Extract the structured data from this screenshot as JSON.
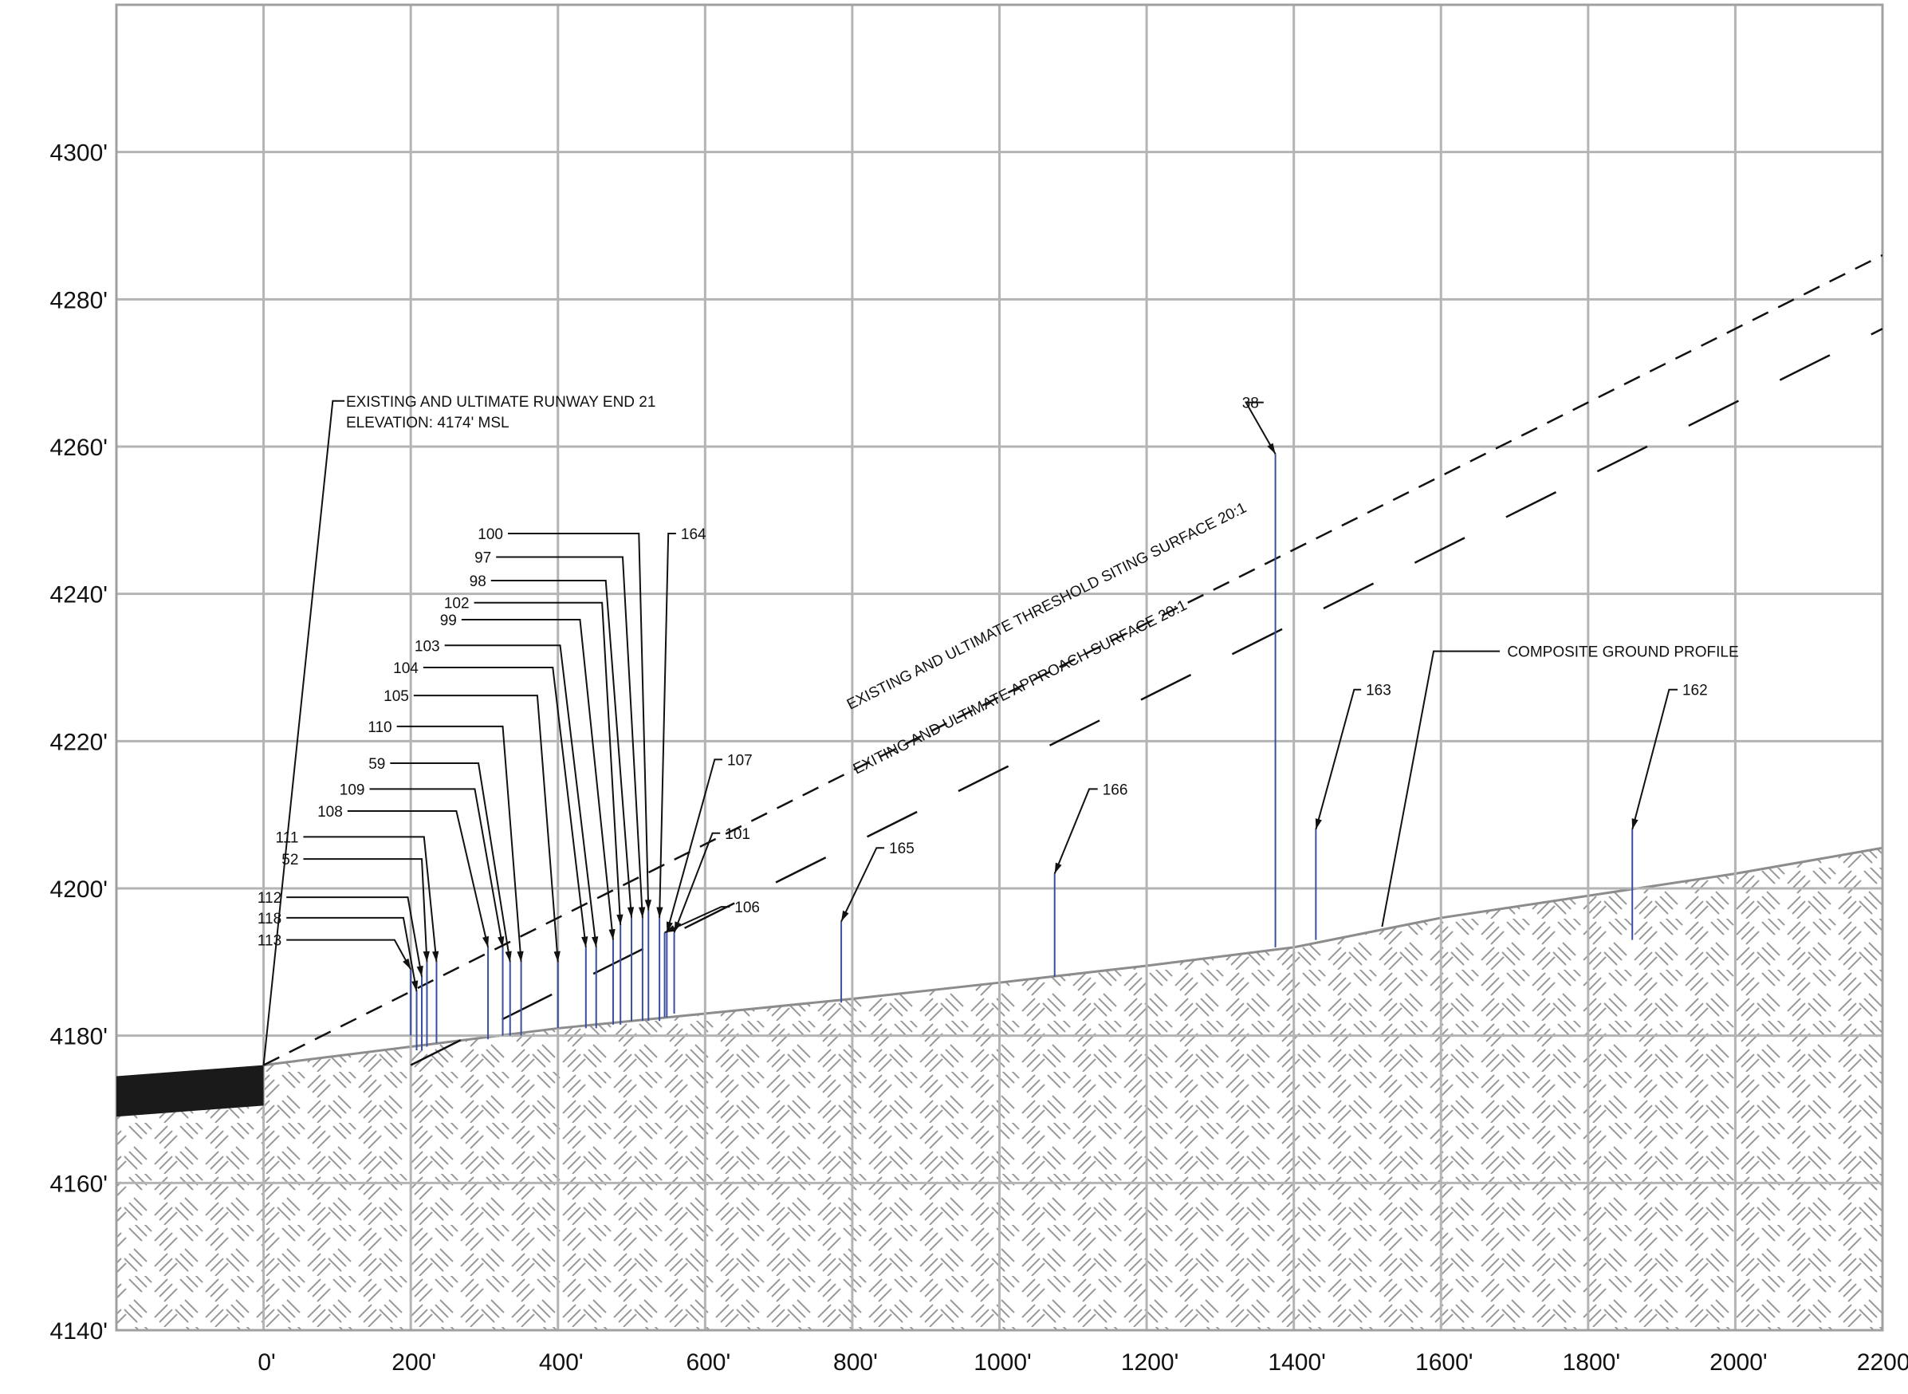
{
  "chart_data": {
    "type": "line",
    "x_unit": "ft",
    "y_unit": "ft MSL",
    "xlim": [
      -200,
      2200
    ],
    "ylim": [
      4140,
      4320
    ],
    "x_ticks": [
      0,
      200,
      400,
      600,
      800,
      1000,
      1200,
      1400,
      1600,
      1800,
      2000,
      2200
    ],
    "x_tick_labels": [
      "0'",
      "200'",
      "400'",
      "600'",
      "800'",
      "1000'",
      "1200'",
      "1400'",
      "1600'",
      "1800'",
      "2000'",
      "2200'"
    ],
    "y_ticks": [
      4140,
      4160,
      4180,
      4200,
      4220,
      4240,
      4260,
      4280,
      4300
    ],
    "y_tick_labels": [
      "4140'",
      "4160'",
      "4180'",
      "4200'",
      "4220'",
      "4240'",
      "4260'",
      "4280'",
      "4300'"
    ],
    "grid": true,
    "runway": {
      "label_line1": "EXISTING AND ULTIMATE RUNWAY END 21",
      "label_line2": "ELEVATION: 4174' MSL",
      "top": [
        [
          -200,
          4174.5
        ],
        [
          0,
          4176
        ]
      ],
      "bottom": [
        [
          -200,
          4169
        ],
        [
          0,
          4170.5
        ]
      ]
    },
    "series": [
      {
        "name": "COMPOSITE GROUND PROFILE",
        "style": "solid-gray-hatched-fill",
        "x": [
          0,
          200,
          400,
          600,
          800,
          1000,
          1200,
          1400,
          1600,
          1800,
          2000,
          2200
        ],
        "y": [
          4176,
          4178.5,
          4181,
          4183,
          4185,
          4187.2,
          4189.5,
          4192,
          4196,
          4199,
          4202,
          4205.5
        ]
      },
      {
        "name": "EXISTING AND ULTIMATE THRESHOLD SITING SURFACE 20:1",
        "style": "short-dash",
        "x": [
          0,
          2200
        ],
        "y": [
          4176,
          4286
        ]
      },
      {
        "name": "EXITING AND ULTIMATE APPROACH SURFACE 20:1",
        "style": "long-dash",
        "x": [
          200,
          2200
        ],
        "y": [
          4176,
          4276
        ]
      }
    ],
    "obstructions": [
      {
        "id": "113",
        "x": 200,
        "top": 4189,
        "base": 4180,
        "label_x": -8,
        "label_y": 4193,
        "elbow_x": 178
      },
      {
        "id": "118",
        "x": 208,
        "top": 4186,
        "base": 4178,
        "label_x": -8,
        "label_y": 4196,
        "elbow_x": 190
      },
      {
        "id": "112",
        "x": 215,
        "top": 4188,
        "base": 4178,
        "label_x": -8,
        "label_y": 4198.8,
        "elbow_x": 196
      },
      {
        "id": "52",
        "x": 222,
        "top": 4190,
        "base": 4178.5,
        "label_x": 15,
        "label_y": 4204,
        "elbow_x": 215
      },
      {
        "id": "111",
        "x": 235,
        "top": 4190,
        "base": 4179,
        "label_x": 15,
        "label_y": 4207,
        "elbow_x": 218
      },
      {
        "id": "108",
        "x": 305,
        "top": 4192,
        "base": 4179.5,
        "label_x": 75,
        "label_y": 4210.5,
        "elbow_x": 262
      },
      {
        "id": "109",
        "x": 325,
        "top": 4192,
        "base": 4180,
        "label_x": 105,
        "label_y": 4213.5,
        "elbow_x": 287
      },
      {
        "id": "59",
        "x": 335,
        "top": 4190,
        "base": 4180,
        "label_x": 133,
        "label_y": 4217,
        "elbow_x": 292
      },
      {
        "id": "110",
        "x": 350,
        "top": 4190,
        "base": 4180,
        "label_x": 142,
        "label_y": 4222,
        "elbow_x": 325
      },
      {
        "id": "105",
        "x": 400,
        "top": 4190,
        "base": 4181,
        "label_x": 165,
        "label_y": 4226.2,
        "elbow_x": 372
      },
      {
        "id": "104",
        "x": 438,
        "top": 4192,
        "base": 4181,
        "label_x": 178,
        "label_y": 4230,
        "elbow_x": 393
      },
      {
        "id": "103",
        "x": 452,
        "top": 4192,
        "base": 4181,
        "label_x": 207,
        "label_y": 4233,
        "elbow_x": 403
      },
      {
        "id": "99",
        "x": 475,
        "top": 4193,
        "base": 4181.5,
        "label_x": 230,
        "label_y": 4236.5,
        "elbow_x": 430
      },
      {
        "id": "102",
        "x": 485,
        "top": 4195,
        "base": 4181.5,
        "label_x": 247,
        "label_y": 4238.8,
        "elbow_x": 460
      },
      {
        "id": "98",
        "x": 500,
        "top": 4196,
        "base": 4182,
        "label_x": 270,
        "label_y": 4241.8,
        "elbow_x": 465
      },
      {
        "id": "97",
        "x": 515,
        "top": 4196,
        "base": 4182,
        "label_x": 277,
        "label_y": 4245,
        "elbow_x": 488
      },
      {
        "id": "100",
        "x": 523,
        "top": 4197,
        "base": 4182,
        "label_x": 293,
        "label_y": 4248.2,
        "elbow_x": 510
      },
      {
        "id": "164",
        "x": 538,
        "top": 4196,
        "base": 4182,
        "label_x": 567,
        "label_y": 4248.2,
        "elbow_x": 550
      },
      {
        "id": "107",
        "x": 548,
        "top": 4194,
        "base": 4182.5,
        "label_x": 630,
        "label_y": 4217.5,
        "elbow_x": 613
      },
      {
        "id": "101",
        "x": 558,
        "top": 4194,
        "base": 4183,
        "label_x": 627,
        "label_y": 4207.5,
        "elbow_x": 610
      },
      {
        "id": "106",
        "x": 545,
        "top": 4194,
        "base": 4182.5,
        "label_x": 640,
        "label_y": 4197.5,
        "elbow_x": 622
      },
      {
        "id": "165",
        "x": 785,
        "top": 4195.5,
        "base": 4184.5,
        "label_x": 850,
        "label_y": 4205.5,
        "elbow_x": 833
      },
      {
        "id": "166",
        "x": 1075,
        "top": 4202,
        "base": 4188,
        "label_x": 1140,
        "label_y": 4213.5,
        "elbow_x": 1122
      },
      {
        "id": "38",
        "x": 1375,
        "top": 4259,
        "base": 4192,
        "label_x": 1320,
        "label_y": 4266,
        "elbow_x": 1335
      },
      {
        "id": "163",
        "x": 1430,
        "top": 4208,
        "base": 4193,
        "label_x": 1498,
        "label_y": 4227,
        "elbow_x": 1482
      },
      {
        "id": "162",
        "x": 1860,
        "top": 4208,
        "base": 4193,
        "label_x": 1928,
        "label_y": 4227,
        "elbow_x": 1910
      }
    ]
  }
}
